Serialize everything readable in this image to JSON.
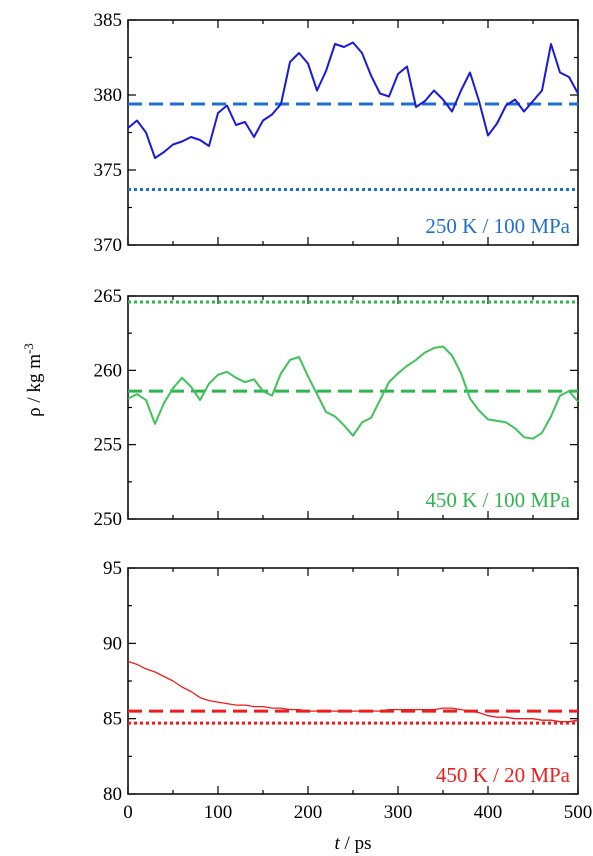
{
  "chart_data": {
    "type": "line",
    "shared_x": {
      "label_italic": "t",
      "label_rest": " / ps",
      "xlim": [
        0,
        500
      ],
      "ticks": [
        0,
        100,
        200,
        300,
        400,
        500
      ],
      "tick_labels": [
        "0",
        "100",
        "200",
        "300",
        "400",
        "500"
      ]
    },
    "shared_y": {
      "label_main": "ρ / kg m",
      "label_sup": "-3"
    },
    "panels": [
      {
        "label": "250 K / 100 MPa",
        "color": "#1a1adb",
        "ref_color": "#1f6fd1",
        "ylim": [
          370,
          385
        ],
        "yticks": [
          370,
          375,
          380,
          385
        ],
        "ytick_labels": [
          "370",
          "375",
          "380",
          "385"
        ],
        "dashed": 379.4,
        "dotted": 373.7,
        "series": {
          "x": [
            0,
            10,
            20,
            30,
            40,
            50,
            60,
            70,
            80,
            90,
            100,
            110,
            120,
            130,
            140,
            150,
            160,
            170,
            180,
            190,
            200,
            210,
            220,
            230,
            240,
            250,
            260,
            270,
            280,
            290,
            300,
            310,
            320,
            330,
            340,
            350,
            360,
            370,
            380,
            390,
            400,
            410,
            420,
            430,
            440,
            450,
            460,
            470,
            480,
            490,
            500
          ],
          "y": [
            377.8,
            378.3,
            377.5,
            375.8,
            376.2,
            376.7,
            376.9,
            377.2,
            377.0,
            376.6,
            378.8,
            379.3,
            378.0,
            378.2,
            377.2,
            378.3,
            378.7,
            379.4,
            382.2,
            382.8,
            382.1,
            380.3,
            381.6,
            383.4,
            383.2,
            383.5,
            382.8,
            381.3,
            380.1,
            379.9,
            381.4,
            381.9,
            379.2,
            379.6,
            380.3,
            379.7,
            378.9,
            380.3,
            381.5,
            379.6,
            377.3,
            378.1,
            379.3,
            379.7,
            378.9,
            379.6,
            380.3,
            383.4,
            381.5,
            381.2,
            380.1
          ]
        }
      },
      {
        "label": "450 K / 100 MPa",
        "color": "#3ec25a",
        "ref_color": "#2fb54e",
        "ylim": [
          250,
          265
        ],
        "yticks": [
          250,
          255,
          260,
          265
        ],
        "ytick_labels": [
          "250",
          "255",
          "260",
          "265"
        ],
        "dashed": 258.6,
        "dotted": 264.6,
        "series": {
          "x": [
            0,
            10,
            20,
            30,
            40,
            50,
            60,
            70,
            80,
            90,
            100,
            110,
            120,
            130,
            140,
            150,
            160,
            170,
            180,
            190,
            200,
            210,
            220,
            230,
            240,
            250,
            260,
            270,
            280,
            290,
            300,
            310,
            320,
            330,
            340,
            350,
            360,
            370,
            380,
            390,
            400,
            410,
            420,
            430,
            440,
            450,
            460,
            470,
            480,
            490,
            500
          ],
          "y": [
            258.1,
            258.4,
            258.0,
            256.4,
            257.8,
            258.8,
            259.5,
            258.9,
            258.0,
            259.1,
            259.7,
            259.9,
            259.5,
            259.2,
            259.4,
            258.6,
            258.3,
            259.8,
            260.7,
            260.9,
            259.6,
            258.4,
            257.2,
            256.9,
            256.3,
            255.6,
            256.5,
            256.8,
            258.0,
            259.2,
            259.8,
            260.3,
            260.7,
            261.2,
            261.5,
            261.6,
            261.0,
            259.8,
            258.1,
            257.3,
            256.7,
            256.6,
            256.5,
            256.1,
            255.5,
            255.4,
            255.8,
            256.9,
            258.3,
            258.6,
            257.9
          ]
        }
      },
      {
        "label": "450 K / 20 MPa",
        "color": "#ee1c1c",
        "ref_color": "#ee1c1c",
        "ylim": [
          80,
          95
        ],
        "yticks": [
          80,
          85,
          90,
          95
        ],
        "ytick_labels": [
          "80",
          "85",
          "90",
          "95"
        ],
        "dashed": 85.5,
        "dotted": 84.7,
        "series": {
          "x": [
            0,
            10,
            20,
            30,
            40,
            50,
            60,
            70,
            80,
            90,
            100,
            110,
            120,
            130,
            140,
            150,
            160,
            170,
            180,
            190,
            200,
            210,
            220,
            230,
            240,
            250,
            260,
            270,
            280,
            290,
            300,
            310,
            320,
            330,
            340,
            350,
            360,
            370,
            380,
            390,
            400,
            410,
            420,
            430,
            440,
            450,
            460,
            470,
            480,
            490,
            500
          ],
          "y": [
            88.8,
            88.6,
            88.3,
            88.1,
            87.8,
            87.5,
            87.1,
            86.8,
            86.4,
            86.2,
            86.1,
            86.0,
            85.9,
            85.9,
            85.8,
            85.8,
            85.7,
            85.7,
            85.6,
            85.6,
            85.5,
            85.5,
            85.5,
            85.5,
            85.5,
            85.5,
            85.5,
            85.5,
            85.5,
            85.6,
            85.6,
            85.6,
            85.6,
            85.6,
            85.6,
            85.7,
            85.7,
            85.6,
            85.5,
            85.4,
            85.2,
            85.1,
            85.1,
            85.0,
            85.0,
            85.0,
            84.9,
            84.9,
            84.8,
            84.8,
            84.9
          ]
        }
      }
    ]
  }
}
